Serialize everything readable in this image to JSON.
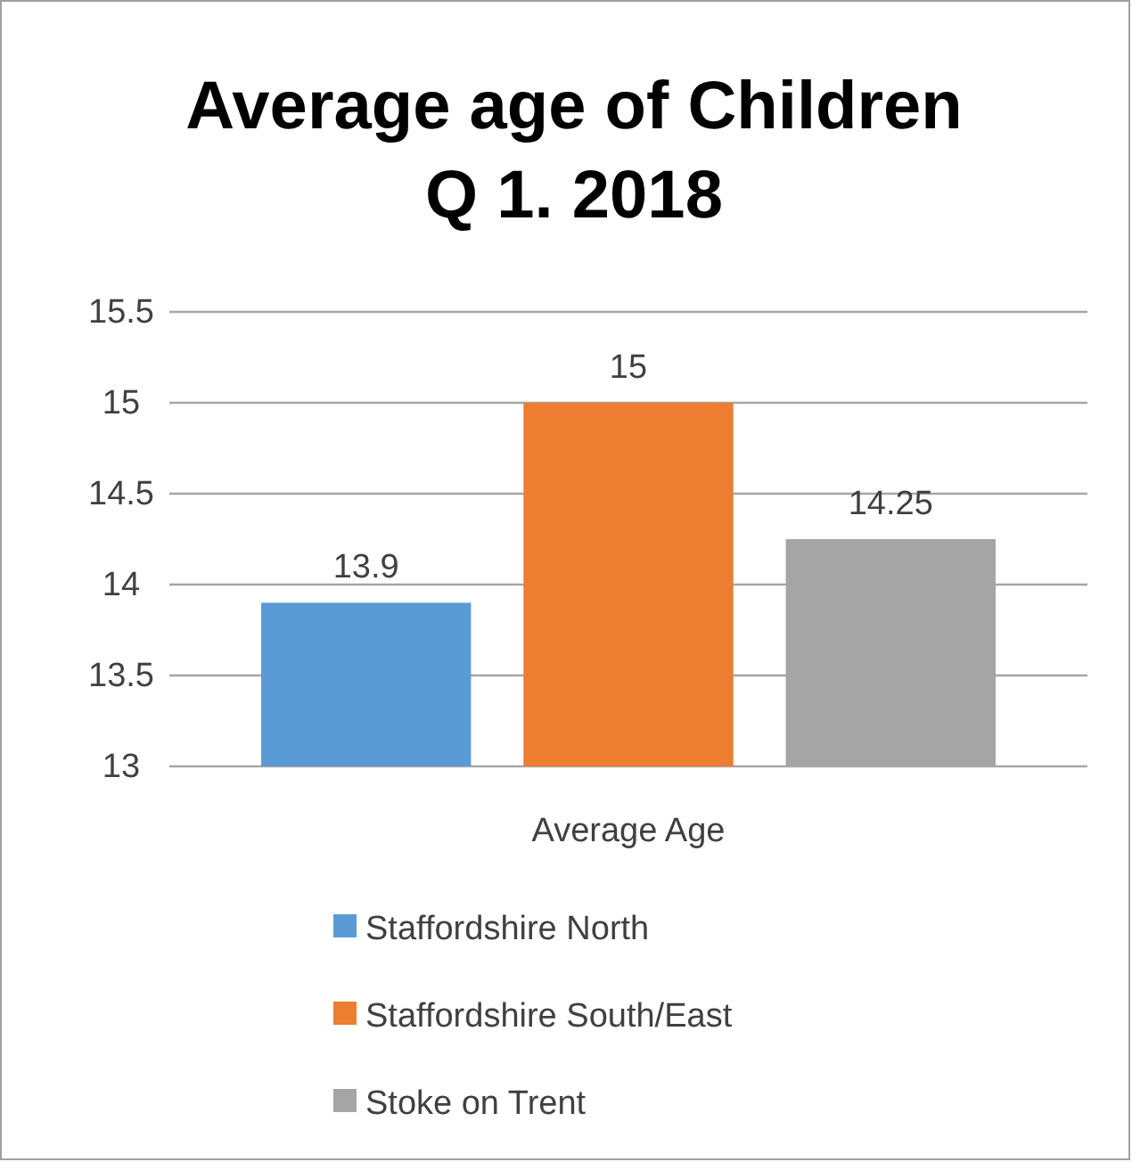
{
  "chart_data": {
    "type": "bar",
    "title": "Average age of Children\nQ 1. 2018",
    "categories": [
      "Average Age"
    ],
    "series": [
      {
        "name": "Staffordshire North",
        "color": "#5b9bd5",
        "values": [
          13.9
        ]
      },
      {
        "name": "Staffordshire South/East",
        "color": "#ed7d31",
        "values": [
          15
        ]
      },
      {
        "name": "Stoke on Trent",
        "color": "#a5a5a5",
        "values": [
          14.25
        ]
      }
    ],
    "ylim": [
      13,
      15.5
    ],
    "yticks": [
      13,
      13.5,
      14,
      14.5,
      15,
      15.5
    ],
    "grid": "y",
    "legend": "bottom",
    "data_labels": true
  }
}
